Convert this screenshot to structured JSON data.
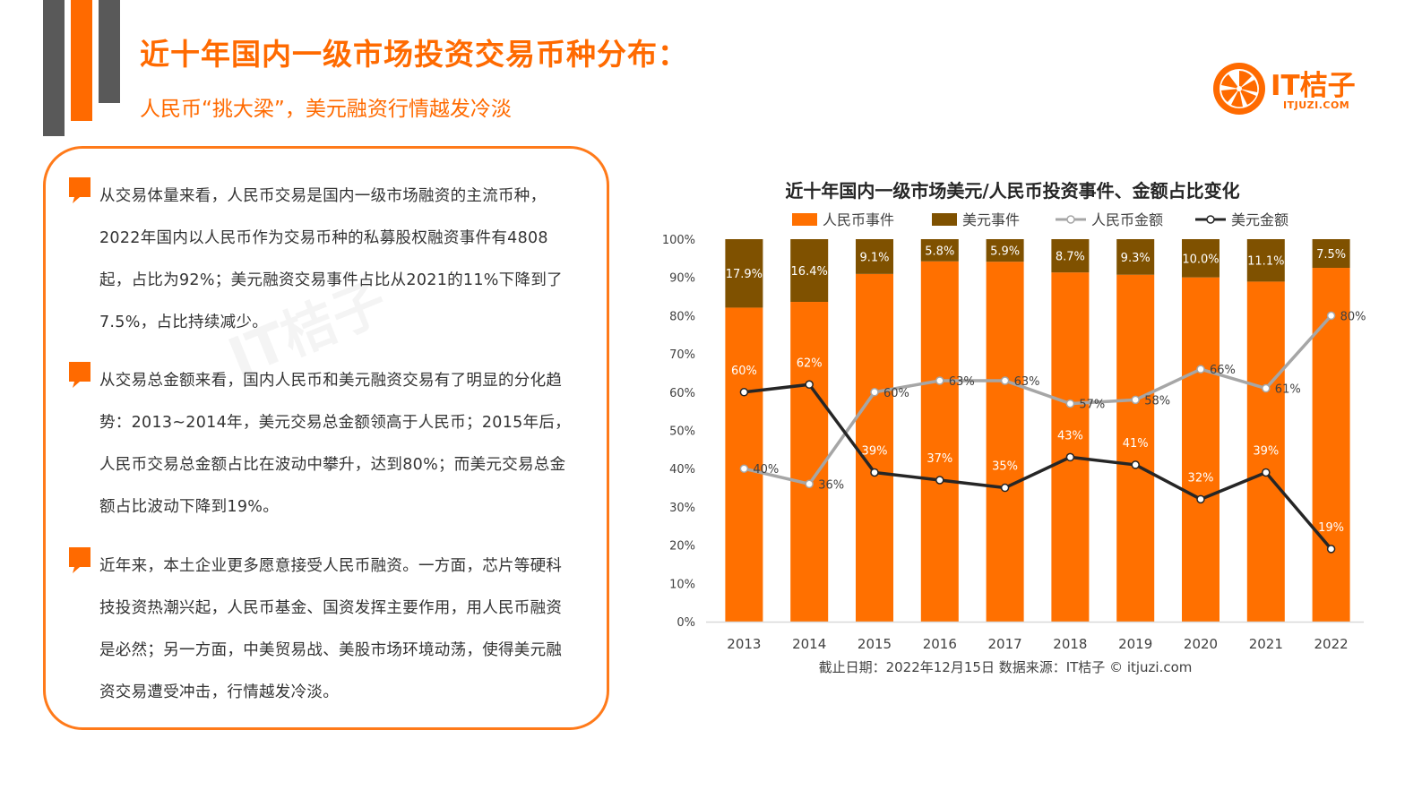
{
  "header": {
    "title": "近十年国内一级市场投资交易币种分布：",
    "subtitle": "人民币“挑大梁”，美元融资行情越发冷淡"
  },
  "logo": {
    "name": "IT桔子",
    "url": "ITJUZI.COM"
  },
  "paragraphs": [
    [
      "从交易体量来看，人民币交易是国内一级市场融资的主流币种，",
      "2022年国内以人民币作为交易币种的私募股权融资事件有4808",
      "起，占比为92%；美元融资交易事件占比从2021的11%下降到了",
      "7.5%，占比持续减少。"
    ],
    [
      "从交易总金额来看，国内人民币和美元融资交易有了明显的分化趋",
      "势：2013~2014年，美元交易总金额领高于人民币；2015年后，",
      "人民币交易总金额占比在波动中攀升，达到80%；而美元交易总金",
      "额占比波动下降到19%。"
    ],
    [
      "近年来，本土企业更多愿意接受人民币融资。一方面，芯片等硬科",
      "技投资热潮兴起，人民币基金、国资发挥主要作用，用人民币融资",
      "是必然；另一方面，中美贸易战、美股市场环境动荡，使得美元融",
      "资交易遭受冲击，行情越发冷淡。"
    ]
  ],
  "colors": {
    "accent": "#FF6A00",
    "rmb_events": "#FF7000",
    "usd_events": "#7F5100",
    "rmb_amount": "#A6A6A6",
    "usd_amount": "#262626",
    "deco_gray": "#595959"
  },
  "chart_data": {
    "type": "bar",
    "title": "近十年国内一级市场美元/人民币投资事件、金额占比变化",
    "categories": [
      "2013",
      "2014",
      "2015",
      "2016",
      "2017",
      "2018",
      "2019",
      "2020",
      "2021",
      "2022"
    ],
    "series": [
      {
        "name": "人民币事件",
        "kind": "bar",
        "values": [
          82.1,
          83.6,
          90.9,
          94.2,
          94.1,
          91.3,
          90.7,
          90.0,
          88.9,
          92.5
        ]
      },
      {
        "name": "美元事件",
        "kind": "bar",
        "values": [
          17.9,
          16.4,
          9.1,
          5.8,
          5.9,
          8.7,
          9.3,
          10.0,
          11.1,
          7.5
        ],
        "labels": [
          "17.9%",
          "16.4%",
          "9.1%",
          "5.8%",
          "5.9%",
          "8.7%",
          "9.3%",
          "10.0%",
          "11.1%",
          "7.5%"
        ]
      },
      {
        "name": "人民币金额",
        "kind": "line",
        "values": [
          40,
          36,
          60,
          63,
          63,
          57,
          58,
          66,
          61,
          80
        ],
        "labels": [
          "40%",
          "36%",
          "60%",
          "63%",
          "63%",
          "57%",
          "58%",
          "66%",
          "61%",
          "80%"
        ]
      },
      {
        "name": "美元金额",
        "kind": "line",
        "values": [
          60,
          62,
          39,
          37,
          35,
          43,
          41,
          32,
          39,
          19
        ],
        "labels": [
          "60%",
          "62%",
          "39%",
          "37%",
          "35%",
          "43%",
          "41%",
          "32%",
          "39%",
          "19%"
        ]
      }
    ],
    "yticks": [
      "0%",
      "10%",
      "20%",
      "30%",
      "40%",
      "50%",
      "60%",
      "70%",
      "80%",
      "90%",
      "100%"
    ],
    "ylim": [
      0,
      100
    ],
    "legend_position": "top",
    "grid": false,
    "footnote": "截止日期：2022年12月15日   数据来源：IT桔子 © itjuzi.com"
  }
}
